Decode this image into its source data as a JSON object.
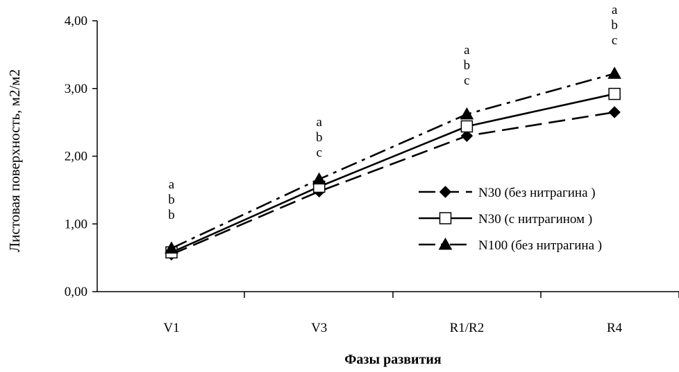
{
  "chart_data": {
    "type": "line",
    "title": "",
    "xlabel": "Фазы развития",
    "ylabel": "Листовая поверхность, м2/м2",
    "categories": [
      "V1",
      "V3",
      "R1/R2",
      "R4"
    ],
    "ylim": [
      0,
      4
    ],
    "yticks": [
      "0,00",
      "1,00",
      "2,00",
      "3,00",
      "4,00"
    ],
    "grid": false,
    "legend_position": "right",
    "series": [
      {
        "name": "N30 (без нитрагина )",
        "values": [
          0.55,
          1.48,
          2.3,
          2.65
        ],
        "marker": "diamond",
        "dash": "long-dash"
      },
      {
        "name": "N30 (с нитрагином )",
        "values": [
          0.58,
          1.55,
          2.44,
          2.92
        ],
        "marker": "square-open",
        "dash": "solid"
      },
      {
        "name": "N100 (без нитрагина )",
        "values": [
          0.64,
          1.66,
          2.62,
          3.22
        ],
        "marker": "triangle",
        "dash": "dash-dot"
      }
    ],
    "annotations": [
      {
        "category": "V1",
        "letters": [
          "a",
          "b",
          "b"
        ]
      },
      {
        "category": "V3",
        "letters": [
          "a",
          "b",
          "c"
        ]
      },
      {
        "category": "R1/R2",
        "letters": [
          "a",
          "b",
          "c"
        ]
      },
      {
        "category": "R4",
        "letters": [
          "a",
          "b",
          "c"
        ]
      }
    ]
  }
}
